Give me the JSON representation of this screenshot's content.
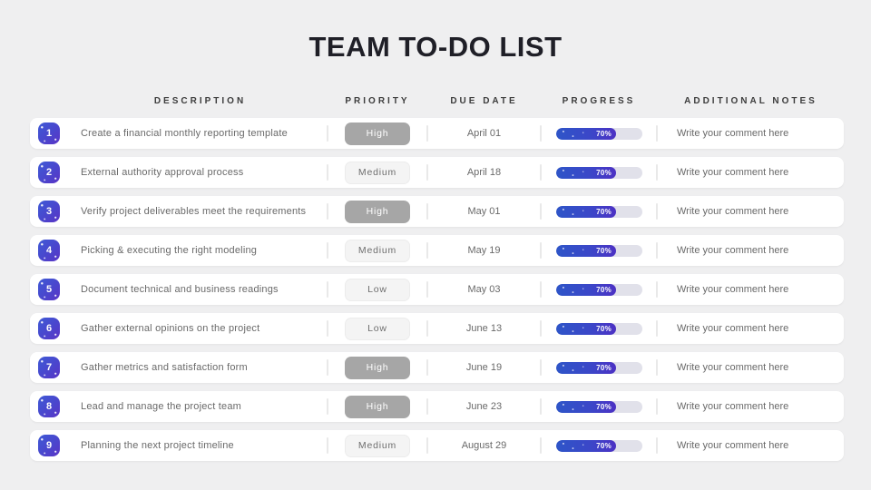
{
  "title": "TEAM TO-DO LIST",
  "table": {
    "headers": {
      "description": "DESCRIPTION",
      "priority": "PRIORITY",
      "due_date": "DUE DATE",
      "progress": "PROGRESS",
      "notes": "ADDITIONAL NOTES"
    }
  },
  "rows": [
    {
      "number": "1",
      "description": "Create a financial monthly reporting template",
      "priority": "High",
      "priority_level": "high",
      "due_date": "April 01",
      "progress_percent": 70,
      "progress_label": "70%",
      "notes": "Write your comment here"
    },
    {
      "number": "2",
      "description": "External authority approval process",
      "priority": "Medium",
      "priority_level": "medium",
      "due_date": "April 18",
      "progress_percent": 70,
      "progress_label": "70%",
      "notes": "Write your comment here"
    },
    {
      "number": "3",
      "description": "Verify project deliverables meet the requirements",
      "priority": "High",
      "priority_level": "high",
      "due_date": "May 01",
      "progress_percent": 70,
      "progress_label": "70%",
      "notes": "Write your comment here"
    },
    {
      "number": "4",
      "description": "Picking & executing the right modeling",
      "priority": "Medium",
      "priority_level": "medium",
      "due_date": "May 19",
      "progress_percent": 70,
      "progress_label": "70%",
      "notes": "Write your comment here"
    },
    {
      "number": "5",
      "description": "Document technical and business readings",
      "priority": "Low",
      "priority_level": "low",
      "due_date": "May 03",
      "progress_percent": 70,
      "progress_label": "70%",
      "notes": "Write your comment here"
    },
    {
      "number": "6",
      "description": "Gather external opinions on the project",
      "priority": "Low",
      "priority_level": "low",
      "due_date": "June 13",
      "progress_percent": 70,
      "progress_label": "70%",
      "notes": "Write your comment here"
    },
    {
      "number": "7",
      "description": "Gather metrics and satisfaction form",
      "priority": "High",
      "priority_level": "high",
      "due_date": "June 19",
      "progress_percent": 70,
      "progress_label": "70%",
      "notes": "Write your comment here"
    },
    {
      "number": "8",
      "description": "Lead and manage the project team",
      "priority": "High",
      "priority_level": "high",
      "due_date": "June 23",
      "progress_percent": 70,
      "progress_label": "70%",
      "notes": "Write your comment here"
    },
    {
      "number": "9",
      "description": "Planning the next project timeline",
      "priority": "Medium",
      "priority_level": "medium",
      "due_date": "August 29",
      "progress_percent": 70,
      "progress_label": "70%",
      "notes": "Write your comment here"
    }
  ],
  "colors": {
    "page_background": "#efeff0",
    "card_background": "#ffffff",
    "badge_gradient_start": "#3e5ad6",
    "badge_gradient_end": "#5a34c6",
    "progress_gradient_start": "#2e55c8",
    "progress_gradient_end": "#4c31c4",
    "progress_track": "#e1e1ea",
    "priority_high_bg": "#a6a6a6",
    "priority_low_bg": "#f4f4f4",
    "text_dark": "#1f1f27",
    "text_gray": "#696969"
  }
}
